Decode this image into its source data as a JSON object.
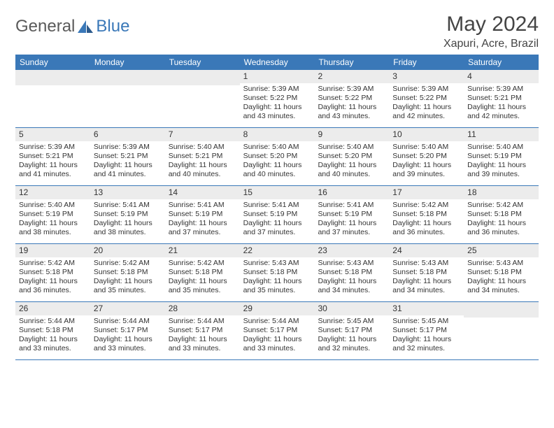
{
  "brand": {
    "part1": "General",
    "part2": "Blue"
  },
  "title": "May 2024",
  "location": "Xapuri, Acre, Brazil",
  "colors": {
    "accent": "#3a78b8",
    "shade": "#ececec",
    "text": "#333333",
    "logo_gray": "#5a5a5a",
    "background": "#ffffff"
  },
  "day_names": [
    "Sunday",
    "Monday",
    "Tuesday",
    "Wednesday",
    "Thursday",
    "Friday",
    "Saturday"
  ],
  "weeks": [
    [
      {
        "n": "",
        "sr": "",
        "ss": "",
        "dl": ""
      },
      {
        "n": "",
        "sr": "",
        "ss": "",
        "dl": ""
      },
      {
        "n": "",
        "sr": "",
        "ss": "",
        "dl": ""
      },
      {
        "n": "1",
        "sr": "Sunrise: 5:39 AM",
        "ss": "Sunset: 5:22 PM",
        "dl": "Daylight: 11 hours and 43 minutes."
      },
      {
        "n": "2",
        "sr": "Sunrise: 5:39 AM",
        "ss": "Sunset: 5:22 PM",
        "dl": "Daylight: 11 hours and 43 minutes."
      },
      {
        "n": "3",
        "sr": "Sunrise: 5:39 AM",
        "ss": "Sunset: 5:22 PM",
        "dl": "Daylight: 11 hours and 42 minutes."
      },
      {
        "n": "4",
        "sr": "Sunrise: 5:39 AM",
        "ss": "Sunset: 5:21 PM",
        "dl": "Daylight: 11 hours and 42 minutes."
      }
    ],
    [
      {
        "n": "5",
        "sr": "Sunrise: 5:39 AM",
        "ss": "Sunset: 5:21 PM",
        "dl": "Daylight: 11 hours and 41 minutes."
      },
      {
        "n": "6",
        "sr": "Sunrise: 5:39 AM",
        "ss": "Sunset: 5:21 PM",
        "dl": "Daylight: 11 hours and 41 minutes."
      },
      {
        "n": "7",
        "sr": "Sunrise: 5:40 AM",
        "ss": "Sunset: 5:21 PM",
        "dl": "Daylight: 11 hours and 40 minutes."
      },
      {
        "n": "8",
        "sr": "Sunrise: 5:40 AM",
        "ss": "Sunset: 5:20 PM",
        "dl": "Daylight: 11 hours and 40 minutes."
      },
      {
        "n": "9",
        "sr": "Sunrise: 5:40 AM",
        "ss": "Sunset: 5:20 PM",
        "dl": "Daylight: 11 hours and 40 minutes."
      },
      {
        "n": "10",
        "sr": "Sunrise: 5:40 AM",
        "ss": "Sunset: 5:20 PM",
        "dl": "Daylight: 11 hours and 39 minutes."
      },
      {
        "n": "11",
        "sr": "Sunrise: 5:40 AM",
        "ss": "Sunset: 5:19 PM",
        "dl": "Daylight: 11 hours and 39 minutes."
      }
    ],
    [
      {
        "n": "12",
        "sr": "Sunrise: 5:40 AM",
        "ss": "Sunset: 5:19 PM",
        "dl": "Daylight: 11 hours and 38 minutes."
      },
      {
        "n": "13",
        "sr": "Sunrise: 5:41 AM",
        "ss": "Sunset: 5:19 PM",
        "dl": "Daylight: 11 hours and 38 minutes."
      },
      {
        "n": "14",
        "sr": "Sunrise: 5:41 AM",
        "ss": "Sunset: 5:19 PM",
        "dl": "Daylight: 11 hours and 37 minutes."
      },
      {
        "n": "15",
        "sr": "Sunrise: 5:41 AM",
        "ss": "Sunset: 5:19 PM",
        "dl": "Daylight: 11 hours and 37 minutes."
      },
      {
        "n": "16",
        "sr": "Sunrise: 5:41 AM",
        "ss": "Sunset: 5:19 PM",
        "dl": "Daylight: 11 hours and 37 minutes."
      },
      {
        "n": "17",
        "sr": "Sunrise: 5:42 AM",
        "ss": "Sunset: 5:18 PM",
        "dl": "Daylight: 11 hours and 36 minutes."
      },
      {
        "n": "18",
        "sr": "Sunrise: 5:42 AM",
        "ss": "Sunset: 5:18 PM",
        "dl": "Daylight: 11 hours and 36 minutes."
      }
    ],
    [
      {
        "n": "19",
        "sr": "Sunrise: 5:42 AM",
        "ss": "Sunset: 5:18 PM",
        "dl": "Daylight: 11 hours and 36 minutes."
      },
      {
        "n": "20",
        "sr": "Sunrise: 5:42 AM",
        "ss": "Sunset: 5:18 PM",
        "dl": "Daylight: 11 hours and 35 minutes."
      },
      {
        "n": "21",
        "sr": "Sunrise: 5:42 AM",
        "ss": "Sunset: 5:18 PM",
        "dl": "Daylight: 11 hours and 35 minutes."
      },
      {
        "n": "22",
        "sr": "Sunrise: 5:43 AM",
        "ss": "Sunset: 5:18 PM",
        "dl": "Daylight: 11 hours and 35 minutes."
      },
      {
        "n": "23",
        "sr": "Sunrise: 5:43 AM",
        "ss": "Sunset: 5:18 PM",
        "dl": "Daylight: 11 hours and 34 minutes."
      },
      {
        "n": "24",
        "sr": "Sunrise: 5:43 AM",
        "ss": "Sunset: 5:18 PM",
        "dl": "Daylight: 11 hours and 34 minutes."
      },
      {
        "n": "25",
        "sr": "Sunrise: 5:43 AM",
        "ss": "Sunset: 5:18 PM",
        "dl": "Daylight: 11 hours and 34 minutes."
      }
    ],
    [
      {
        "n": "26",
        "sr": "Sunrise: 5:44 AM",
        "ss": "Sunset: 5:18 PM",
        "dl": "Daylight: 11 hours and 33 minutes."
      },
      {
        "n": "27",
        "sr": "Sunrise: 5:44 AM",
        "ss": "Sunset: 5:17 PM",
        "dl": "Daylight: 11 hours and 33 minutes."
      },
      {
        "n": "28",
        "sr": "Sunrise: 5:44 AM",
        "ss": "Sunset: 5:17 PM",
        "dl": "Daylight: 11 hours and 33 minutes."
      },
      {
        "n": "29",
        "sr": "Sunrise: 5:44 AM",
        "ss": "Sunset: 5:17 PM",
        "dl": "Daylight: 11 hours and 33 minutes."
      },
      {
        "n": "30",
        "sr": "Sunrise: 5:45 AM",
        "ss": "Sunset: 5:17 PM",
        "dl": "Daylight: 11 hours and 32 minutes."
      },
      {
        "n": "31",
        "sr": "Sunrise: 5:45 AM",
        "ss": "Sunset: 5:17 PM",
        "dl": "Daylight: 11 hours and 32 minutes."
      },
      {
        "n": "",
        "sr": "",
        "ss": "",
        "dl": ""
      }
    ]
  ]
}
